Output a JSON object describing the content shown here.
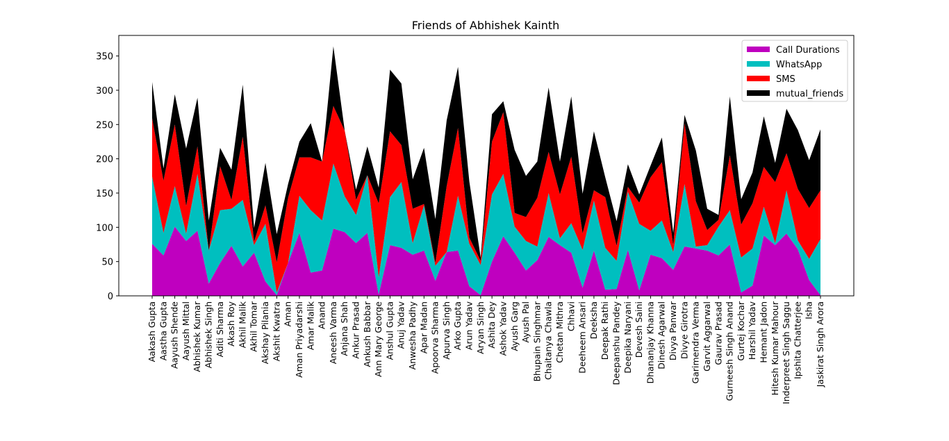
{
  "chart_data": {
    "type": "area",
    "stacked": true,
    "title": "Friends of Abhishek Kainth",
    "xlabel": "",
    "ylabel": "",
    "ylim": [
      0,
      380
    ],
    "yticks": [
      0,
      50,
      100,
      150,
      200,
      250,
      300,
      350
    ],
    "grid": false,
    "legend_position": "top-right",
    "categories": [
      "Aakash Gupta",
      "Aastha Gupta",
      "Aayush Shende",
      "Aayush Mittal",
      "Abhishek Kumar",
      "Abhishek Singh",
      "Aditi Sharma",
      "Akash Roy",
      "Akhil Malik",
      "Akhil Tomar",
      "Akshay Pilania",
      "Akshit Kwatra",
      "Aman",
      "Aman Priyadarshi",
      "Amar Malik",
      "Anand",
      "Aneesh Varma",
      "Anjana Shah",
      "Ankur Prasad",
      "Ankush Babbar",
      "Ann Mary George",
      "Anshul Gupta",
      "Anuj Yadav",
      "Anwesha Padhy",
      "Apar Madan",
      "Apoorva Sharma",
      "Apurva Singh",
      "Arko Gupta",
      "Arun Yadav",
      "Aryan Singh",
      "Ashita Dey",
      "Ashok Yadav",
      "Ayush Garg",
      "Ayush Pal",
      "Bhupain Singhmar",
      "Chaitanya Chawla",
      "Chetan Mithra",
      "Chhavi",
      "Deeheem Ansari",
      "Deeksha",
      "Deepak Rathi",
      "Deepanshu Pandey",
      "Deepika Naryani",
      "Devesh Saini",
      "Dhananjay Khanna",
      "Dinesh Agarwal",
      "Divya Panwar",
      "Divye Girotra",
      "Garimendra Verma",
      "Garvit Aggarwal",
      "Gaurav Prasad",
      "Gurneesh Singh Anand",
      "Gurtej Kochar",
      "Harshil Yadav",
      "Hemant Jadon",
      "Hitesh Kumar Mahour",
      "Inderpreet Singh Saggu",
      "Ipshita Chatterjee",
      "Isha",
      "Jaskirat Singh Arora"
    ],
    "series": [
      {
        "name": "Call Durations",
        "color": "#bf00bf",
        "values": [
          76,
          59,
          101,
          80,
          95,
          18,
          48,
          73,
          43,
          63,
          21,
          1,
          48,
          92,
          34,
          37,
          98,
          93,
          77,
          92,
          2,
          74,
          70,
          60,
          66,
          22,
          64,
          66,
          14,
          1,
          50,
          87,
          63,
          37,
          52,
          86,
          74,
          63,
          12,
          66,
          9,
          10,
          67,
          8,
          60,
          55,
          38,
          72,
          69,
          66,
          59,
          75,
          5,
          15,
          88,
          74,
          91,
          68,
          23,
          1
        ]
      },
      {
        "name": "WhatsApp",
        "color": "#00bfbf",
        "values": [
          98,
          33,
          59,
          11,
          83,
          48,
          77,
          54,
          97,
          11,
          84,
          4,
          0,
          54,
          91,
          73,
          95,
          52,
          41,
          84,
          25,
          70,
          96,
          17,
          66,
          22,
          0,
          80,
          62,
          44,
          98,
          91,
          38,
          43,
          20,
          64,
          10,
          43,
          55,
          73,
          61,
          41,
          85,
          97,
          35,
          55,
          26,
          91,
          3,
          8,
          42,
          50,
          51,
          54,
          42,
          3,
          63,
          13,
          31,
          82
        ]
      },
      {
        "name": "SMS",
        "color": "#ff0000",
        "values": [
          85,
          76,
          90,
          40,
          40,
          0,
          64,
          13,
          92,
          5,
          27,
          44,
          95,
          56,
          77,
          86,
          84,
          96,
          22,
          0,
          108,
          96,
          54,
          50,
          2,
          4,
          96,
          99,
          9,
          6,
          77,
          90,
          20,
          35,
          71,
          60,
          64,
          97,
          24,
          15,
          74,
          22,
          7,
          31,
          78,
          85,
          10,
          89,
          66,
          22,
          10,
          80,
          48,
          66,
          58,
          89,
          54,
          75,
          74,
          71
        ]
      },
      {
        "name": "mutual_friends",
        "color": "#000000",
        "values": [
          53,
          18,
          44,
          84,
          71,
          44,
          27,
          44,
          76,
          20,
          62,
          41,
          20,
          23,
          50,
          0,
          87,
          0,
          15,
          42,
          23,
          90,
          90,
          43,
          82,
          64,
          96,
          89,
          82,
          5,
          40,
          16,
          92,
          60,
          53,
          94,
          48,
          88,
          58,
          86,
          29,
          36,
          33,
          12,
          17,
          36,
          18,
          12,
          74,
          31,
          7,
          86,
          37,
          45,
          74,
          28,
          65,
          86,
          70,
          89
        ]
      }
    ]
  }
}
